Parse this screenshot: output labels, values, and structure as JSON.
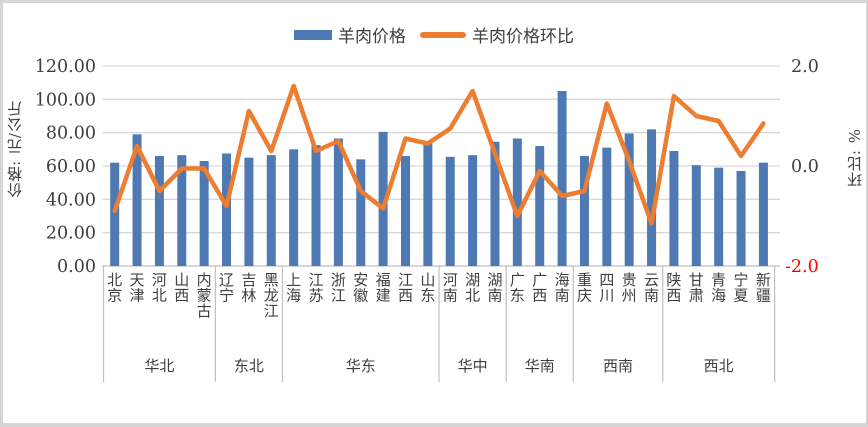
{
  "legend": {
    "items": [
      {
        "label": "羊肉价格",
        "swatch": "bar",
        "color": "#4e79b2"
      },
      {
        "label": "羊肉价格环比",
        "swatch": "line",
        "color": "#ed7d31"
      }
    ]
  },
  "left_axis": {
    "title": "价格: 元/公斤",
    "ticks": [
      {
        "label": "120.00",
        "value": 120
      },
      {
        "label": "100.00",
        "value": 100
      },
      {
        "label": "80.00",
        "value": 80
      },
      {
        "label": "60.00",
        "value": 60
      },
      {
        "label": "40.00",
        "value": 40
      },
      {
        "label": "20.00",
        "value": 20
      },
      {
        "label": "0.00",
        "value": 0
      }
    ],
    "color": "#3f3f3f"
  },
  "right_axis": {
    "title": "环比: %",
    "ticks": [
      {
        "label": "2.0",
        "value": 2,
        "color": "#3f3f3f"
      },
      {
        "label": "0.0",
        "value": 0,
        "color": "#3f3f3f"
      },
      {
        "label": "-2.0",
        "value": -2,
        "color": "#ff0000"
      }
    ]
  },
  "chart_data": {
    "type": "bar",
    "subtype": "bar+line combo, dual axis",
    "title": "",
    "categories": [
      "北京",
      "天津",
      "河北",
      "山西",
      "内蒙古",
      "辽宁",
      "吉林",
      "黑龙江",
      "上海",
      "江苏",
      "浙江",
      "安徽",
      "福建",
      "江西",
      "山东",
      "河南",
      "湖北",
      "湖南",
      "广东",
      "广西",
      "海南",
      "重庆",
      "四川",
      "贵州",
      "云南",
      "陕西",
      "甘肃",
      "青海",
      "宁夏",
      "新疆"
    ],
    "region_groups": [
      {
        "label": "华北",
        "count": 5
      },
      {
        "label": "东北",
        "count": 3
      },
      {
        "label": "华东",
        "count": 7
      },
      {
        "label": "华中",
        "count": 3
      },
      {
        "label": "华南",
        "count": 3
      },
      {
        "label": "西南",
        "count": 4
      },
      {
        "label": "西北",
        "count": 5
      }
    ],
    "series": [
      {
        "name": "羊肉价格",
        "type": "bar",
        "axis": "left",
        "unit": "元/公斤",
        "color": "#4e79b2",
        "values": [
          62,
          79,
          66,
          66.5,
          63,
          67.5,
          65,
          66.5,
          70,
          72.5,
          76.5,
          64,
          80.5,
          66,
          73.5,
          65.5,
          66.5,
          74.5,
          76.5,
          72,
          105,
          66,
          71,
          79.5,
          82,
          69,
          60.5,
          59,
          57,
          62
        ]
      },
      {
        "name": "羊肉价格环比",
        "type": "line",
        "axis": "right",
        "unit": "%",
        "color": "#ed7d31",
        "values": [
          -0.9,
          0.4,
          -0.5,
          -0.05,
          -0.05,
          -0.8,
          1.1,
          0.3,
          1.6,
          0.3,
          0.5,
          -0.5,
          -0.85,
          0.55,
          0.45,
          0.75,
          1.5,
          0.25,
          -1.0,
          -0.1,
          -0.6,
          -0.5,
          1.25,
          0.1,
          -1.15,
          1.4,
          1.0,
          0.9,
          0.2,
          0.85
        ]
      }
    ],
    "left_ylim": [
      0,
      120
    ],
    "right_ylim": [
      -2,
      2
    ],
    "grid": true,
    "legend_position": "top",
    "grid_color": "#d9d9d9",
    "axis_line_color": "#bfbfbf"
  }
}
